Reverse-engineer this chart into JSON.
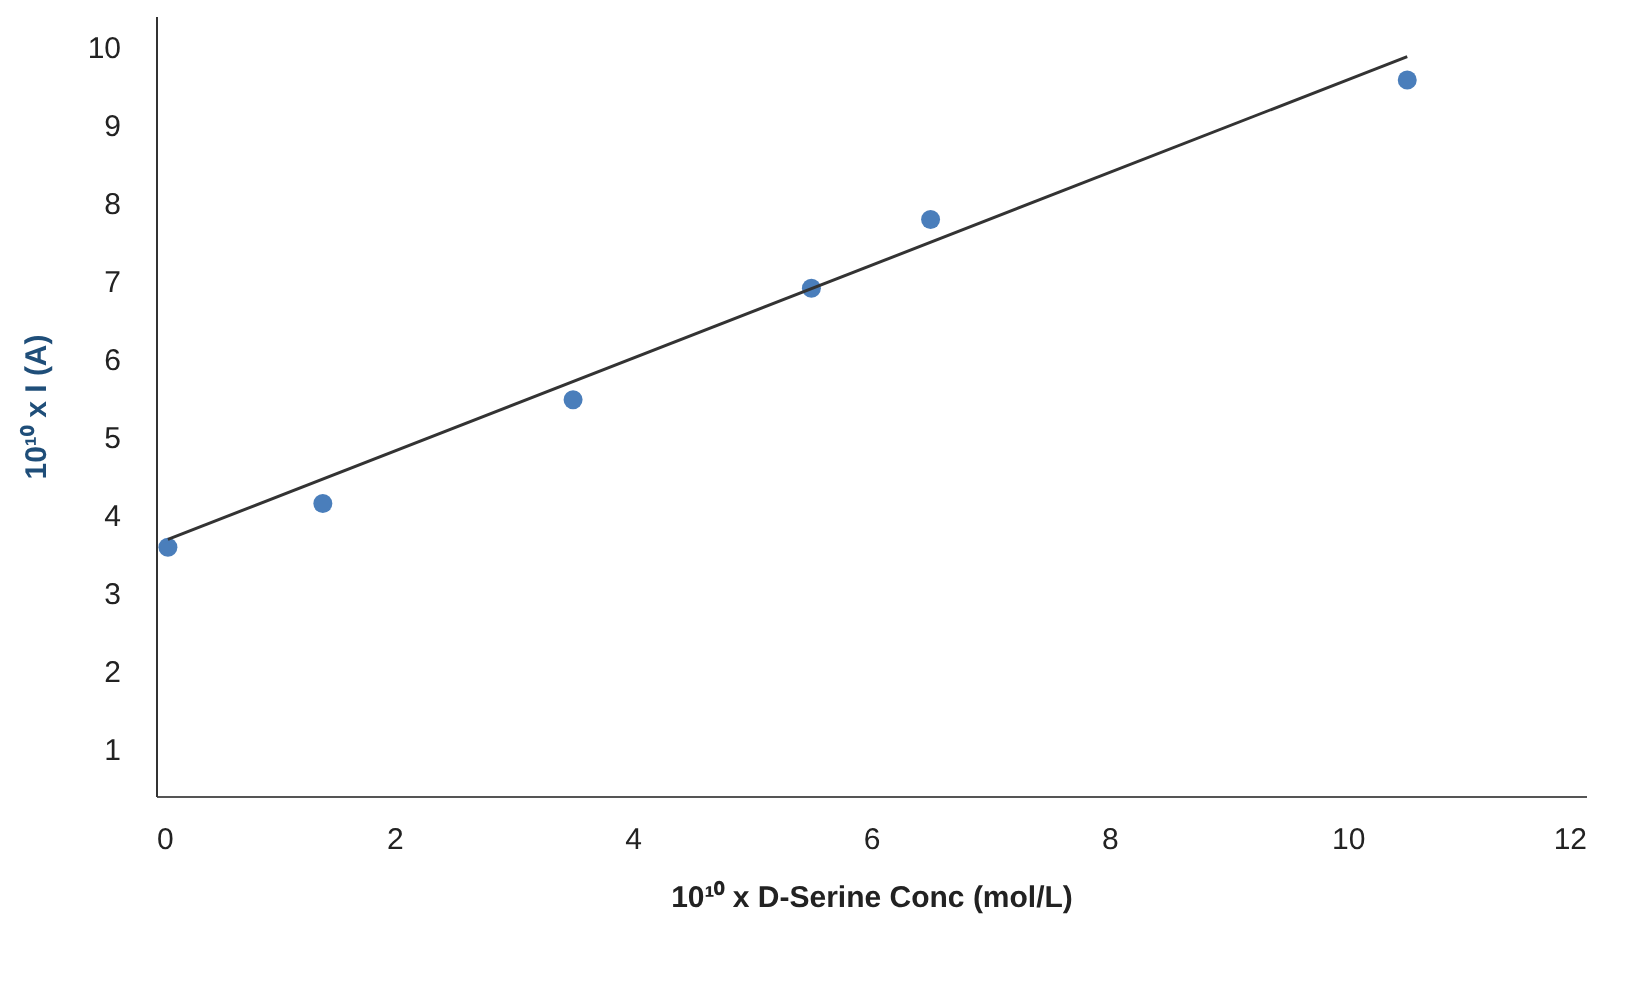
{
  "chart_data": {
    "type": "scatter",
    "xlabel": "10¹⁰ x D-Serine Conc (mol/L)",
    "ylabel": "10¹⁰ x I (A)",
    "xlim": [
      0,
      12
    ],
    "xticks": [
      0,
      2,
      4,
      6,
      8,
      10,
      12
    ],
    "ylim": [
      0.4,
      10.4
    ],
    "yticks": [
      1,
      2,
      3,
      4,
      5,
      6,
      7,
      8,
      9,
      10
    ],
    "grid": false,
    "marker": "circle",
    "series": [
      {
        "color": "#4a7ebb",
        "x": [
          0.1,
          1.4,
          3.5,
          5.5,
          6.5,
          10.5
        ],
        "values": [
          3.59,
          4.15,
          5.48,
          6.91,
          7.79,
          9.58
        ]
      },
      {
        "type": "line",
        "color": "#333333",
        "x": [
          0.1,
          10.5
        ],
        "values": [
          3.69,
          9.88
        ],
        "marker": "none",
        "line_style": "solid"
      }
    ]
  }
}
